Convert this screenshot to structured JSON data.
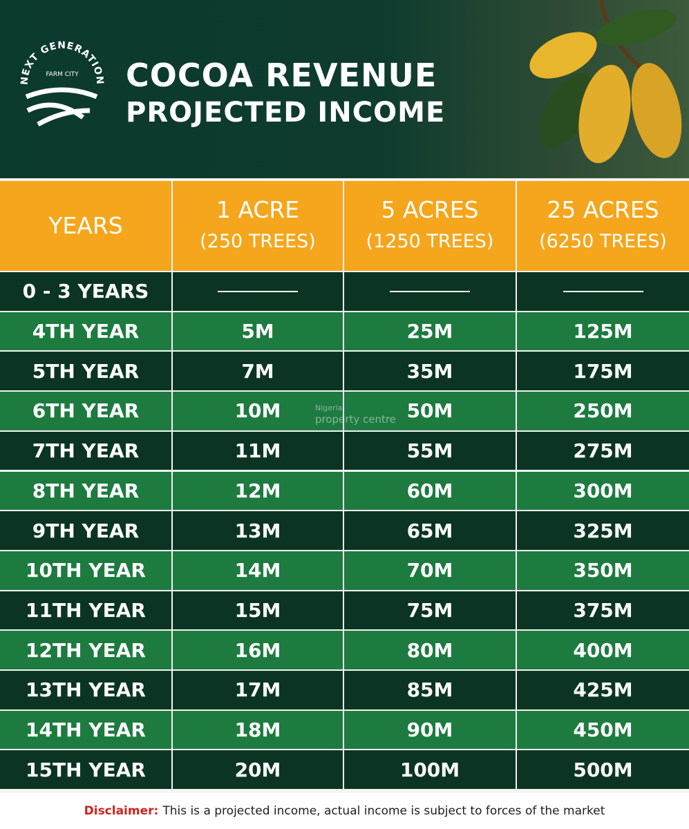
{
  "header": {
    "brand": {
      "name": "NEXT GENERATION",
      "sub": "FARM CITY"
    },
    "title": [
      "COCOA REVENUE",
      "PROJECTED INCOME"
    ]
  },
  "table": {
    "columns": [
      [
        "YEARS"
      ],
      [
        "1 ACRE",
        "(250 TREES)"
      ],
      [
        "5 ACRES",
        "(1250 TREES)"
      ],
      [
        "25 ACRES",
        "(6250 TREES)"
      ]
    ],
    "rows": [
      [
        "0 - 3 YEARS"
      ],
      [
        "4TH YEAR",
        "5M",
        "25M",
        "125M"
      ],
      [
        "5TH YEAR",
        "7M",
        "35M",
        "175M"
      ],
      [
        "6TH YEAR",
        "10M",
        "50M",
        "250M"
      ],
      [
        "7TH YEAR",
        "11M",
        "55M",
        "275M"
      ],
      [
        "8TH YEAR",
        "12M",
        "60M",
        "300M"
      ],
      [
        "9TH YEAR",
        "13M",
        "65M",
        "325M"
      ],
      [
        "10TH YEAR",
        "14M",
        "70M",
        "350M"
      ],
      [
        "11TH YEAR",
        "15M",
        "75M",
        "375M"
      ],
      [
        "12TH YEAR",
        "16M",
        "80M",
        "400M"
      ],
      [
        "13TH YEAR",
        "17M",
        "85M",
        "425M"
      ],
      [
        "14TH YEAR",
        "18M",
        "90M",
        "450M"
      ],
      [
        "15TH YEAR",
        "20M",
        "100M",
        "500M"
      ]
    ]
  },
  "watermark": [
    "Nigeria",
    "property centre"
  ],
  "disclaimer": {
    "label": "Disclaimer:",
    "text": "This is a projected income, actual income is subject to forces of the market"
  }
}
